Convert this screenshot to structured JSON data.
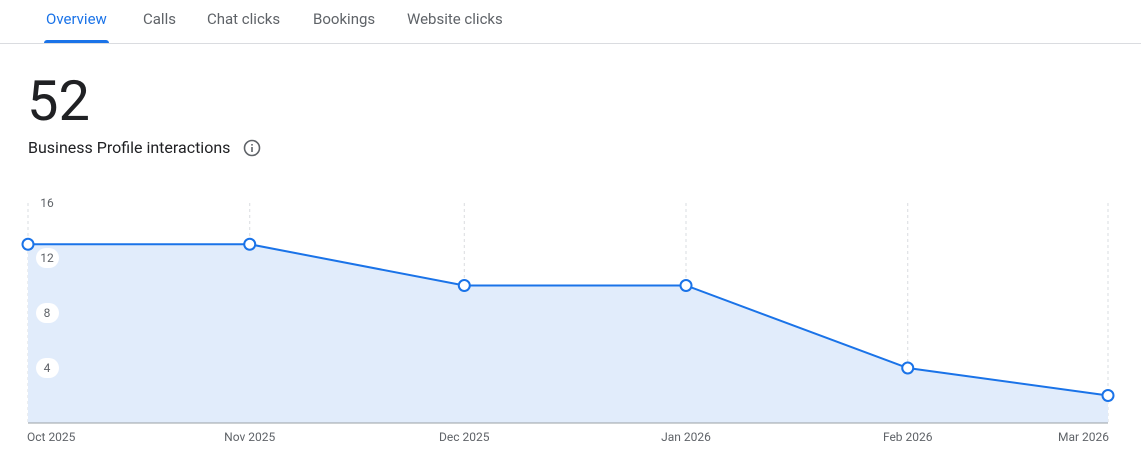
{
  "tabs": [
    "Overview",
    "Calls",
    "Chat clicks",
    "Bookings",
    "Website clicks"
  ],
  "active_tab": 0,
  "total": 52,
  "metric_label": "Business Profile interactions",
  "chart_data": {
    "type": "area",
    "x": [
      "Oct 2025",
      "Nov 2025",
      "Dec 2025",
      "Jan 2026",
      "Feb 2026",
      "Mar 2026"
    ],
    "series": [
      {
        "name": "Business Profile interactions",
        "color": "#1a73e8",
        "values": [
          13,
          13,
          10,
          10,
          4,
          2
        ]
      }
    ],
    "ylim": [
      0,
      16
    ],
    "yticks": [
      4,
      8,
      12,
      16
    ],
    "grid": true
  }
}
